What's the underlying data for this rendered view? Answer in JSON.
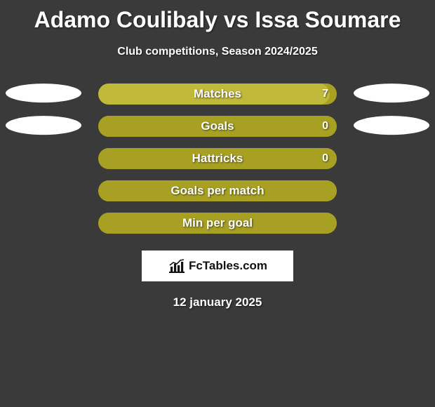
{
  "background_color": "#3a3a3a",
  "title": {
    "text": "Adamo Coulibaly vs Issa Soumare",
    "color": "#ffffff",
    "fontsize": 32,
    "fontweight": 800
  },
  "subtitle": {
    "text": "Club competitions, Season 2024/2025",
    "color": "#ffffff",
    "fontsize": 16,
    "fontweight": 600
  },
  "ellipse_color": "#ffffff",
  "bar_style": {
    "height": 30,
    "border_radius": 15,
    "label_color": "#ffffff",
    "label_fontsize": 17,
    "label_fontweight": 700,
    "value_color": "#ffffff",
    "value_fontsize": 16,
    "text_shadow": "1px 1px 2px rgba(0,0,0,0.6)"
  },
  "rows": [
    {
      "label": "Matches",
      "value": "7",
      "show_ellipses": true,
      "track_color": "#a7a022",
      "fill_color": "#c1b93a",
      "fill_width_ratio": 0.97
    },
    {
      "label": "Goals",
      "value": "0",
      "show_ellipses": true,
      "track_color": "#a7a022",
      "fill_color": "#a7a022",
      "fill_width_ratio": 1.0
    },
    {
      "label": "Hattricks",
      "value": "0",
      "show_ellipses": false,
      "track_color": "#a7a022",
      "fill_color": "#a7a022",
      "fill_width_ratio": 1.0
    },
    {
      "label": "Goals per match",
      "value": "",
      "show_ellipses": false,
      "track_color": "#a7a022",
      "fill_color": "#a7a022",
      "fill_width_ratio": 1.0
    },
    {
      "label": "Min per goal",
      "value": "",
      "show_ellipses": false,
      "track_color": "#a7a022",
      "fill_color": "#a7a022",
      "fill_width_ratio": 1.0
    }
  ],
  "watermark": {
    "box_bg": "#ffffff",
    "text": "FcTables.com",
    "text_color": "#111111",
    "fontsize": 17,
    "fontweight": 700,
    "icon_color": "#111111"
  },
  "date": {
    "text": "12 january 2025",
    "color": "#ffffff",
    "fontsize": 17,
    "fontweight": 700
  }
}
